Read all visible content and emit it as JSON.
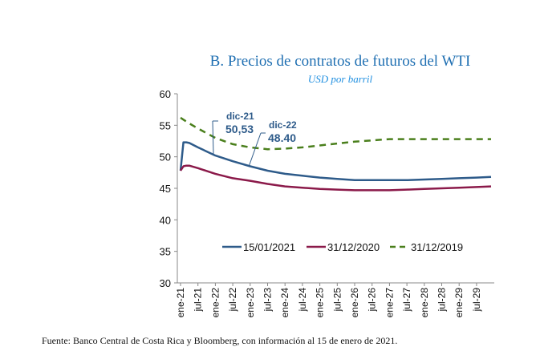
{
  "chart_data": {
    "type": "line",
    "title": "B.  Precios de contratos de futuros del WTI",
    "subtitle": "USD por barril",
    "xlabel": "",
    "ylabel": "",
    "ylim": [
      30,
      60
    ],
    "yticks": [
      "30",
      "35",
      "40",
      "45",
      "50",
      "55",
      "60"
    ],
    "x_tick_labels": [
      "ene-21",
      "jul-21",
      "ene-22",
      "jul-22",
      "ene-23",
      "jul-23",
      "ene-24",
      "jul-24",
      "ene-25",
      "jul-25",
      "ene-26",
      "jul-26",
      "ene-27",
      "jul-27",
      "ene-28",
      "jul-28",
      "ene-29",
      "jul-29"
    ],
    "x_months": [
      0,
      1,
      2,
      3,
      6,
      12,
      18,
      24,
      30,
      36,
      42,
      48,
      54,
      60,
      66,
      72,
      78,
      84,
      90,
      96,
      102,
      107
    ],
    "series": [
      {
        "name": "15/01/2021",
        "color": "#2e5b8a",
        "dash": false,
        "values": [
          47.8,
          52.3,
          52.3,
          52.2,
          51.5,
          50.2,
          49.3,
          48.5,
          47.8,
          47.3,
          47.0,
          46.7,
          46.5,
          46.3,
          46.3,
          46.3,
          46.3,
          46.4,
          46.5,
          46.6,
          46.7,
          46.8
        ]
      },
      {
        "name": "31/12/2020",
        "color": "#8b1a4a",
        "dash": false,
        "values": [
          47.8,
          48.5,
          48.6,
          48.6,
          48.2,
          47.3,
          46.6,
          46.2,
          45.7,
          45.3,
          45.1,
          44.9,
          44.8,
          44.7,
          44.7,
          44.7,
          44.8,
          44.9,
          45.0,
          45.1,
          45.2,
          45.3
        ]
      },
      {
        "name": "31/12/2019",
        "color": "#4a7f1c",
        "dash": true,
        "values": [
          56.2,
          55.9,
          55.6,
          55.3,
          54.5,
          53.0,
          52.0,
          51.5,
          51.2,
          51.3,
          51.5,
          51.8,
          52.1,
          52.4,
          52.6,
          52.8,
          52.8,
          52.8,
          52.8,
          52.8,
          52.8,
          52.8
        ]
      }
    ],
    "annotations": [
      {
        "label": "dic-21",
        "value": "50,53"
      },
      {
        "label": "dic-22",
        "value": "48.40"
      }
    ],
    "legend_position": "bottom-inside",
    "grid": false
  },
  "source": "Fuente: Banco Central de Costa Rica y Bloomberg, con información al 15 de enero de 2021."
}
